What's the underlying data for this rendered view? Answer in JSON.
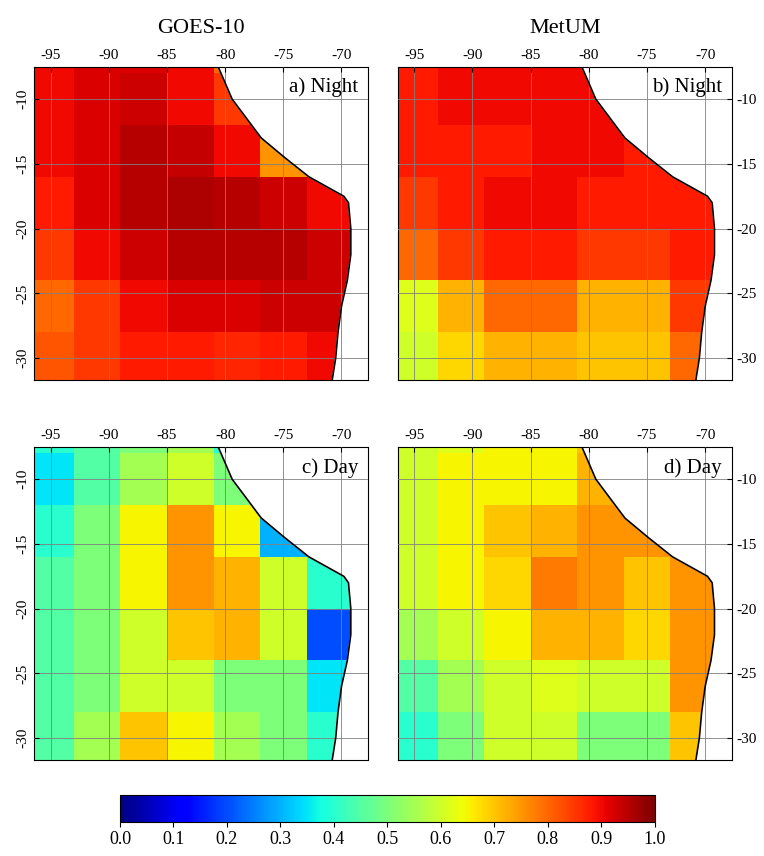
{
  "chart_data": [
    {
      "type": "heatmap",
      "title": "GOES-10",
      "annotations": [
        "a) Night"
      ],
      "xlim": [
        -96.4,
        -67.7
      ],
      "ylim": [
        -31.7,
        -7.5
      ],
      "xticks": [
        -95,
        -90,
        -85,
        -80,
        -75,
        -70
      ],
      "yticks": [
        -10,
        -15,
        -20,
        -25,
        -30
      ],
      "grid": true,
      "x_edges": [
        -97,
        -93,
        -89,
        -85,
        -81,
        -77,
        -73,
        -69
      ],
      "y_edges": [
        -32,
        -28,
        -24,
        -20,
        -16,
        -12,
        -8,
        -4
      ],
      "cells": [
        [
          0.82,
          0.85,
          0.88,
          0.88,
          0.87,
          0.88,
          0.9
        ],
        [
          0.8,
          0.85,
          0.9,
          0.92,
          0.92,
          0.93,
          0.93
        ],
        [
          0.85,
          0.9,
          0.93,
          0.95,
          0.95,
          0.95,
          0.93
        ],
        [
          0.88,
          0.92,
          0.95,
          0.96,
          0.95,
          0.93,
          0.9
        ],
        [
          0.9,
          0.92,
          0.95,
          0.94,
          0.9,
          0.75,
          0.9
        ],
        [
          0.9,
          0.92,
          0.93,
          0.9,
          0.85,
          0.85,
          0.9
        ],
        [
          0.9,
          0.92,
          0.92,
          0.9,
          0.8,
          0.8,
          0.8
        ]
      ],
      "color_range": [
        0.0,
        1.0
      ],
      "color_ticks": [
        {
          "value": 0.0,
          "label": "0.0"
        },
        0.1,
        0.2,
        0.3,
        0.4,
        0.5,
        0.6,
        0.7,
        0.8,
        0.9,
        {
          "value": 1.0,
          "label": "1.0"
        }
      ],
      "coastline": {
        "lon": [
          -80.9,
          -80.6,
          -79.4,
          -76.9,
          -74.9,
          -72.8,
          -69.8,
          -69.4,
          -69.2,
          -69.2,
          -69.5,
          -70.0,
          -70.3,
          -70.5,
          -70.8,
          -70.8
        ],
        "lat": [
          -7.0,
          -7.5,
          -10.0,
          -13.0,
          -14.5,
          -16.0,
          -17.5,
          -18.0,
          -20.0,
          -22.0,
          -24.0,
          -26.0,
          -28.0,
          -30.0,
          -31.7,
          -32.2
        ]
      }
    },
    {
      "type": "heatmap",
      "title": "MetUM",
      "annotations": [
        "b) Night"
      ],
      "xlim": [
        -96.4,
        -67.7
      ],
      "ylim": [
        -31.7,
        -7.5
      ],
      "xticks": [
        -95,
        -90,
        -85,
        -80,
        -75,
        -70
      ],
      "yticks": [
        -10,
        -15,
        -20,
        -25,
        -30
      ],
      "grid": true,
      "x_edges": [
        -97,
        -93,
        -89,
        -85,
        -81,
        -77,
        -73,
        -69
      ],
      "y_edges": [
        -32,
        -28,
        -24,
        -20,
        -16,
        -12,
        -8,
        -4
      ],
      "cells": [
        [
          0.6,
          0.68,
          0.72,
          0.72,
          0.7,
          0.7,
          0.8
        ],
        [
          0.62,
          0.72,
          0.8,
          0.8,
          0.72,
          0.72,
          0.85
        ],
        [
          0.8,
          0.85,
          0.88,
          0.88,
          0.85,
          0.85,
          0.88
        ],
        [
          0.85,
          0.88,
          0.9,
          0.9,
          0.88,
          0.88,
          0.88
        ],
        [
          0.88,
          0.88,
          0.88,
          0.9,
          0.9,
          0.88,
          0.88
        ],
        [
          0.88,
          0.9,
          0.9,
          0.9,
          0.9,
          0.88,
          0.88
        ],
        [
          0.88,
          0.9,
          0.9,
          0.9,
          0.9,
          0.88,
          0.88
        ]
      ],
      "color_range": [
        0.0,
        1.0
      ],
      "color_ticks": [
        {
          "value": 0.0,
          "label": "0.0"
        },
        0.1,
        0.2,
        0.3,
        0.4,
        0.5,
        0.6,
        0.7,
        0.8,
        0.9,
        {
          "value": 1.0,
          "label": "1.0"
        }
      ],
      "coastline": {
        "lon": [
          -80.9,
          -80.6,
          -79.4,
          -76.9,
          -74.9,
          -72.8,
          -69.8,
          -69.4,
          -69.2,
          -69.2,
          -69.5,
          -70.0,
          -70.3,
          -70.5,
          -70.8,
          -70.8
        ],
        "lat": [
          -7.0,
          -7.5,
          -10.0,
          -13.0,
          -14.5,
          -16.0,
          -17.5,
          -18.0,
          -20.0,
          -22.0,
          -24.0,
          -26.0,
          -28.0,
          -30.0,
          -31.7,
          -32.2
        ]
      }
    },
    {
      "type": "heatmap",
      "annotations": [
        "c) Day"
      ],
      "xlim": [
        -96.4,
        -67.7
      ],
      "ylim": [
        -31.7,
        -7.5
      ],
      "xticks": [
        -95,
        -90,
        -85,
        -80,
        -75,
        -70
      ],
      "yticks": [
        -10,
        -15,
        -20,
        -25,
        -30
      ],
      "grid": true,
      "x_edges": [
        -97,
        -93,
        -89,
        -85,
        -81,
        -77,
        -73,
        -69
      ],
      "y_edges": [
        -32,
        -28,
        -24,
        -20,
        -16,
        -12,
        -8,
        -4
      ],
      "cells": [
        [
          0.45,
          0.55,
          0.7,
          0.65,
          0.55,
          0.5,
          0.4
        ],
        [
          0.45,
          0.5,
          0.6,
          0.6,
          0.5,
          0.5,
          0.35
        ],
        [
          0.45,
          0.5,
          0.6,
          0.7,
          0.72,
          0.6,
          0.2
        ],
        [
          0.45,
          0.5,
          0.65,
          0.75,
          0.72,
          0.6,
          0.4
        ],
        [
          0.4,
          0.5,
          0.65,
          0.75,
          0.65,
          0.3,
          0.5
        ],
        [
          0.35,
          0.45,
          0.55,
          0.6,
          0.5,
          0.2,
          0.3
        ],
        [
          0.4,
          0.45,
          0.5,
          0.55,
          0.4,
          0.15,
          0.1
        ]
      ],
      "color_range": [
        0.0,
        1.0
      ],
      "color_ticks": [
        {
          "value": 0.0,
          "label": "0.0"
        },
        0.1,
        0.2,
        0.3,
        0.4,
        0.5,
        0.6,
        0.7,
        0.8,
        0.9,
        {
          "value": 1.0,
          "label": "1.0"
        }
      ],
      "coastline": {
        "lon": [
          -80.9,
          -80.6,
          -79.4,
          -76.9,
          -74.9,
          -72.8,
          -69.8,
          -69.4,
          -69.2,
          -69.2,
          -69.5,
          -70.0,
          -70.3,
          -70.5,
          -70.8,
          -70.8
        ],
        "lat": [
          -7.0,
          -7.5,
          -10.0,
          -13.0,
          -14.5,
          -16.0,
          -17.5,
          -18.0,
          -20.0,
          -22.0,
          -24.0,
          -26.0,
          -28.0,
          -30.0,
          -31.7,
          -32.2
        ]
      }
    },
    {
      "type": "heatmap",
      "annotations": [
        "d) Day"
      ],
      "xlim": [
        -96.4,
        -67.7
      ],
      "ylim": [
        -31.7,
        -7.5
      ],
      "xticks": [
        -95,
        -90,
        -85,
        -80,
        -75,
        -70
      ],
      "yticks": [
        -10,
        -15,
        -20,
        -25,
        -30
      ],
      "grid": true,
      "x_edges": [
        -97,
        -93,
        -89,
        -85,
        -81,
        -77,
        -73,
        -69
      ],
      "y_edges": [
        -32,
        -28,
        -24,
        -20,
        -16,
        -12,
        -8,
        -4
      ],
      "cells": [
        [
          0.4,
          0.5,
          0.6,
          0.6,
          0.5,
          0.5,
          0.7
        ],
        [
          0.45,
          0.55,
          0.6,
          0.62,
          0.6,
          0.6,
          0.75
        ],
        [
          0.55,
          0.6,
          0.65,
          0.72,
          0.72,
          0.68,
          0.75
        ],
        [
          0.6,
          0.65,
          0.68,
          0.78,
          0.75,
          0.7,
          0.75
        ],
        [
          0.6,
          0.65,
          0.7,
          0.72,
          0.75,
          0.75,
          0.75
        ],
        [
          0.6,
          0.65,
          0.65,
          0.65,
          0.72,
          0.75,
          0.7
        ],
        [
          0.6,
          0.62,
          0.65,
          0.65,
          0.7,
          0.75,
          0.7
        ]
      ],
      "color_range": [
        0.0,
        1.0
      ],
      "color_ticks": [
        {
          "value": 0.0,
          "label": "0.0"
        },
        0.1,
        0.2,
        0.3,
        0.4,
        0.5,
        0.6,
        0.7,
        0.8,
        0.9,
        {
          "value": 1.0,
          "label": "1.0"
        }
      ],
      "coastline": {
        "lon": [
          -80.9,
          -80.6,
          -79.4,
          -76.9,
          -74.9,
          -72.8,
          -69.8,
          -69.4,
          -69.2,
          -69.2,
          -69.5,
          -70.0,
          -70.3,
          -70.5,
          -70.8,
          -70.8
        ],
        "lat": [
          -7.0,
          -7.5,
          -10.0,
          -13.0,
          -14.5,
          -16.0,
          -17.5,
          -18.0,
          -20.0,
          -22.0,
          -24.0,
          -26.0,
          -28.0,
          -30.0,
          -31.7,
          -32.2
        ]
      }
    }
  ]
}
